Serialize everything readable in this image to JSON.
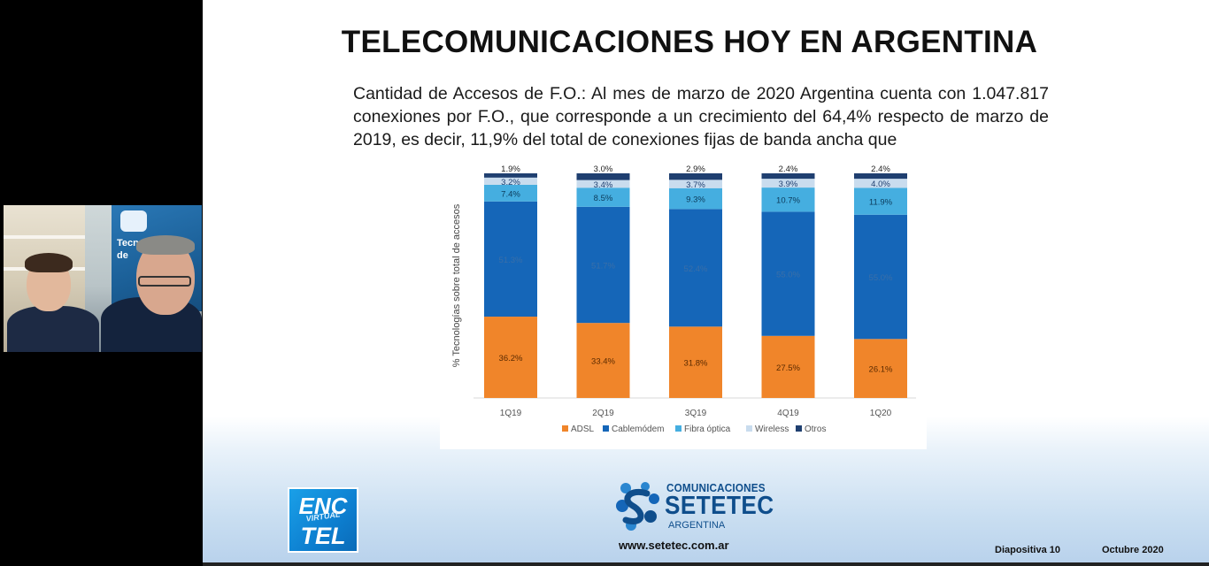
{
  "slide": {
    "title": "TELECOMUNICACIONES HOY EN ARGENTINA",
    "paragraph": "Cantidad de Accesos de F.O.: Al mes de marzo de 2020 Argentina cuenta con 1.047.817 conexiones por F.O., que corresponde a un crecimiento del 64,4% respecto de marzo de 2019, es decir, 11,9% del total de conexiones fijas de banda ancha que",
    "footer": {
      "enc_logo": {
        "line1": "ENC",
        "line2": "VIRTUAL",
        "line3": "TEL"
      },
      "brand_small": "COMUNICACIONES",
      "brand_big": "SETETEC",
      "brand_country": "ARGENTINA",
      "website": "www.setetec.com.ar",
      "slide_number": "Diapositiva 10",
      "date": "Octubre 2020"
    }
  },
  "webcam": {
    "banner_text": "Tecno\nde"
  },
  "colors": {
    "adsl": "#f0852a",
    "cablemodem": "#1566b8",
    "fibra": "#45aee0",
    "wireless": "#c9dcee",
    "otros": "#1f3f70",
    "brand": "#0f4e8c"
  },
  "chart_data": {
    "type": "bar",
    "stacked": true,
    "ylabel": "% Tecnologías sobre total de accesos",
    "categories": [
      "1Q19",
      "2Q19",
      "3Q19",
      "4Q19",
      "1Q20"
    ],
    "series": [
      {
        "name": "ADSL",
        "values": [
          36.2,
          33.4,
          31.8,
          27.5,
          26.1
        ],
        "labels": [
          "36.2%",
          "33.4%",
          "31.8%",
          "27.5%",
          "26.1%"
        ]
      },
      {
        "name": "Cablemódem",
        "values": [
          51.3,
          51.7,
          52.4,
          55.0,
          55.0
        ],
        "labels": [
          "51.3%",
          "51.7%",
          "52.4%",
          "55.0%",
          "55.0%"
        ]
      },
      {
        "name": "Fibra óptica",
        "values": [
          7.4,
          8.5,
          9.3,
          10.7,
          11.9
        ],
        "labels": [
          "7.4%",
          "8.5%",
          "9.3%",
          "10.7%",
          "11.9%"
        ]
      },
      {
        "name": "Wireless",
        "values": [
          3.2,
          3.4,
          3.7,
          3.9,
          4.0
        ],
        "labels": [
          "3.2%",
          "3.4%",
          "3.7%",
          "3.9%",
          "4.0%"
        ]
      },
      {
        "name": "Otros",
        "values": [
          1.9,
          3.0,
          2.9,
          2.4,
          2.4
        ],
        "labels": [
          "1.9%",
          "3.0%",
          "2.9%",
          "2.4%",
          "2.4%"
        ]
      }
    ],
    "ylim": [
      0,
      100
    ],
    "legend_position": "bottom",
    "grid": false
  }
}
